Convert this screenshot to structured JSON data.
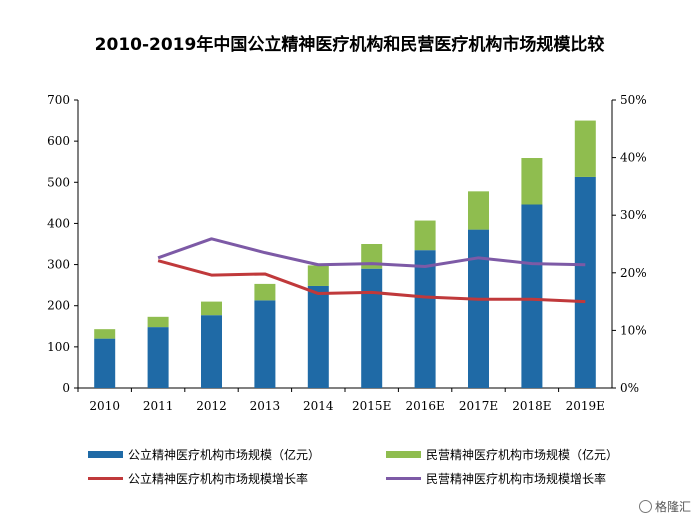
{
  "chart_data": {
    "type": "bar",
    "title": "2010-2019年中国公立精神医疗机构和民营医疗机构市场规模比较",
    "categories": [
      "2010",
      "2011",
      "2012",
      "2013",
      "2014",
      "2015E",
      "2016E",
      "2017E",
      "2018E",
      "2019E"
    ],
    "stacked": true,
    "ylim": [
      0,
      700
    ],
    "yticks": [
      0,
      100,
      200,
      300,
      400,
      500,
      600,
      700
    ],
    "y2lim": [
      0,
      50
    ],
    "y2ticks": [
      "0%",
      "10%",
      "20%",
      "30%",
      "40%",
      "50%"
    ],
    "series": [
      {
        "name": "公立精神医疗机构市场规模（亿元）",
        "type": "bar",
        "axis": "left",
        "color": "#1f6aa6",
        "values": [
          120,
          148,
          177,
          213,
          248,
          290,
          335,
          385,
          446,
          513
        ]
      },
      {
        "name": "民营精神医疗机构市场规模（亿元）",
        "type": "bar",
        "axis": "left",
        "color": "#8fbd4f",
        "values": [
          23,
          25,
          33,
          40,
          50,
          60,
          72,
          93,
          113,
          137
        ]
      },
      {
        "name": "公立精神医疗机构市场规模增长率",
        "type": "line",
        "axis": "right",
        "color": "#c0393b",
        "x": [
          "2011",
          "2012",
          "2013",
          "2014",
          "2015E",
          "2016E",
          "2017E",
          "2018E",
          "2019E"
        ],
        "values": [
          22.1,
          19.6,
          19.8,
          16.4,
          16.6,
          15.8,
          15.4,
          15.4,
          15.0
        ]
      },
      {
        "name": "民营精神医疗机构市场规模增长率",
        "type": "line",
        "axis": "right",
        "color": "#7d5aa6",
        "x": [
          "2011",
          "2012",
          "2013",
          "2014",
          "2015E",
          "2016E",
          "2017E",
          "2018E",
          "2019E"
        ],
        "values": [
          22.6,
          25.9,
          23.5,
          21.4,
          21.6,
          21.1,
          22.6,
          21.6,
          21.4
        ]
      }
    ],
    "grid": false,
    "legend_position": "bottom"
  },
  "watermark": "格隆汇"
}
